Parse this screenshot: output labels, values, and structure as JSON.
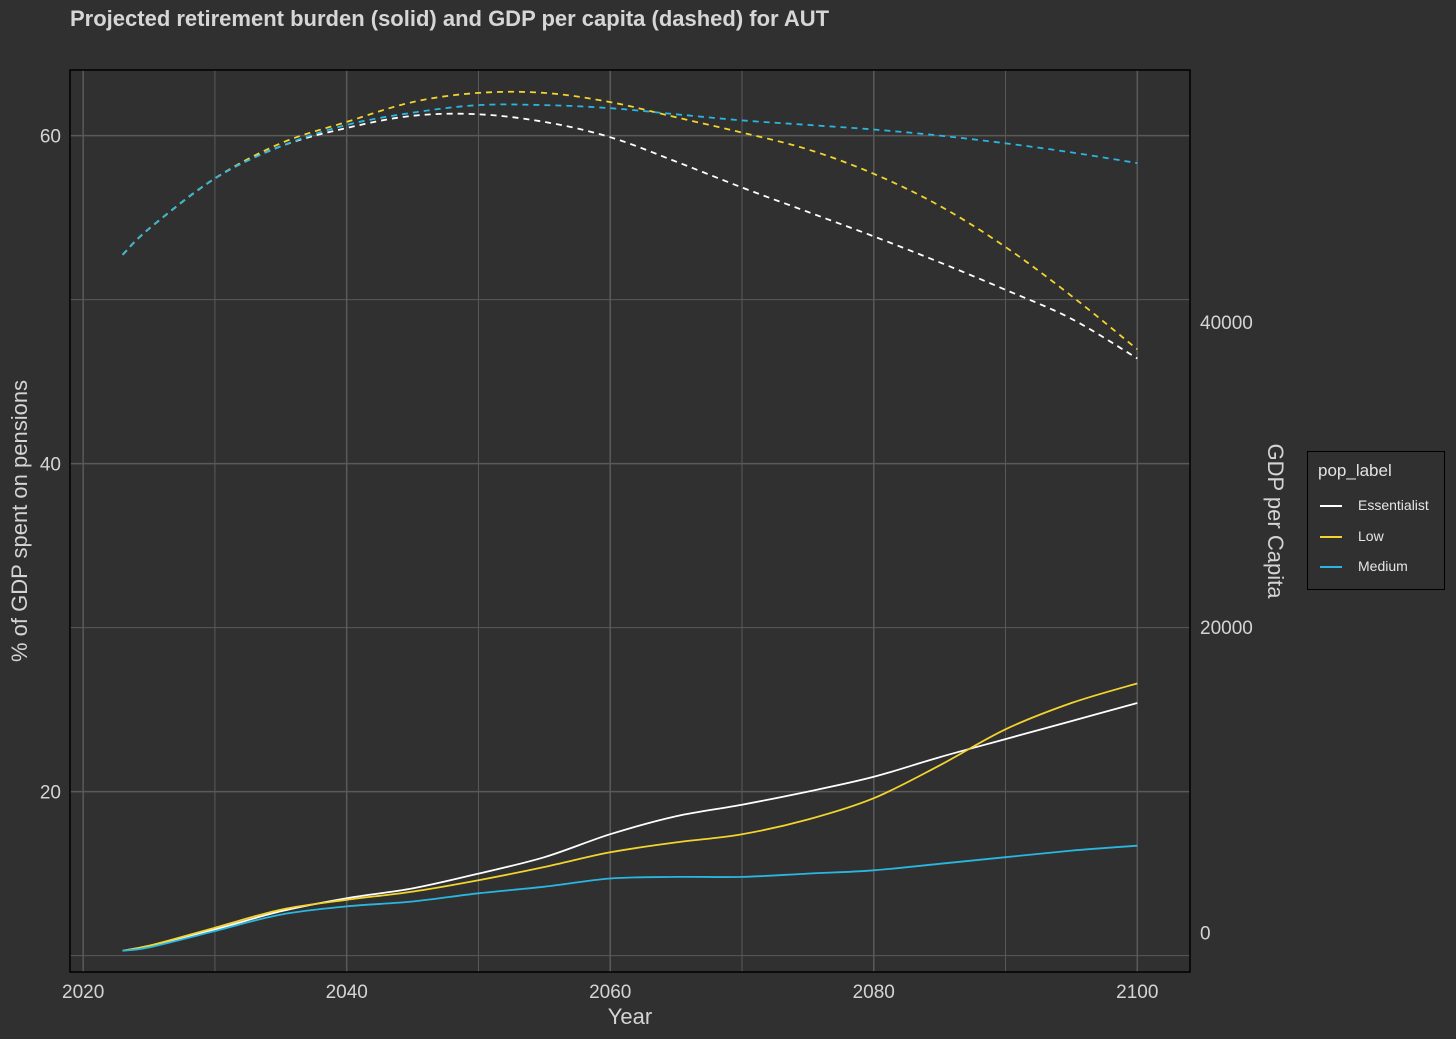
{
  "title": "Projected retirement burden (solid) and GDP per capita (dashed) for AUT",
  "chart_data": {
    "type": "line",
    "title": "Projected retirement burden (solid) and GDP per capita (dashed) for AUT",
    "xlabel": "Year",
    "ylabel": "% of GDP spent on pensions",
    "y2label": "GDP per Capita",
    "xlim": [
      2019,
      2104
    ],
    "ylim": [
      9,
      64
    ],
    "y2lim": [
      -2600,
      56500
    ],
    "x_ticks": [
      2020,
      2040,
      2060,
      2080,
      2100
    ],
    "y_ticks": [
      20,
      40,
      60
    ],
    "y2_ticks": [
      0,
      20000,
      40000
    ],
    "grid": true,
    "legend": {
      "title": "pop_label",
      "position": "right",
      "entries": [
        "Essentialist",
        "Low",
        "Medium"
      ]
    },
    "colors": {
      "Essentialist": "#ffffff",
      "Low": "#f2d42e",
      "Medium": "#29b6e0"
    },
    "x": [
      2023,
      2025,
      2030,
      2035,
      2040,
      2045,
      2050,
      2055,
      2060,
      2065,
      2070,
      2075,
      2080,
      2085,
      2090,
      2095,
      2100
    ],
    "pension_series": [
      {
        "name": "Essentialist",
        "values": [
          10.3,
          10.6,
          11.6,
          12.7,
          13.5,
          14.1,
          15.0,
          16.0,
          17.4,
          18.5,
          19.2,
          20.0,
          20.9,
          22.1,
          23.2,
          24.3,
          25.4
        ]
      },
      {
        "name": "Low",
        "values": [
          10.3,
          10.6,
          11.7,
          12.8,
          13.4,
          13.9,
          14.6,
          15.4,
          16.3,
          16.9,
          17.4,
          18.3,
          19.6,
          21.6,
          23.8,
          25.4,
          26.6
        ]
      },
      {
        "name": "Medium",
        "values": [
          10.3,
          10.5,
          11.5,
          12.5,
          13.0,
          13.3,
          13.8,
          14.2,
          14.7,
          14.8,
          14.8,
          15.0,
          15.2,
          15.6,
          16.0,
          16.4,
          16.7
        ]
      }
    ],
    "gdp_series": [
      {
        "name": "Essentialist",
        "values": [
          44400,
          46100,
          49400,
          51500,
          52700,
          53500,
          53600,
          53100,
          52100,
          50500,
          48800,
          47200,
          45600,
          43900,
          42100,
          40200,
          37600
        ]
      },
      {
        "name": "Low",
        "values": [
          44400,
          46100,
          49400,
          51700,
          53100,
          54400,
          55000,
          55000,
          54400,
          53400,
          52400,
          51300,
          49700,
          47600,
          44900,
          41700,
          38200
        ]
      },
      {
        "name": "Medium",
        "values": [
          44400,
          46100,
          49400,
          51500,
          52900,
          53700,
          54200,
          54200,
          54000,
          53600,
          53200,
          52900,
          52600,
          52200,
          51700,
          51100,
          50400
        ]
      }
    ]
  }
}
